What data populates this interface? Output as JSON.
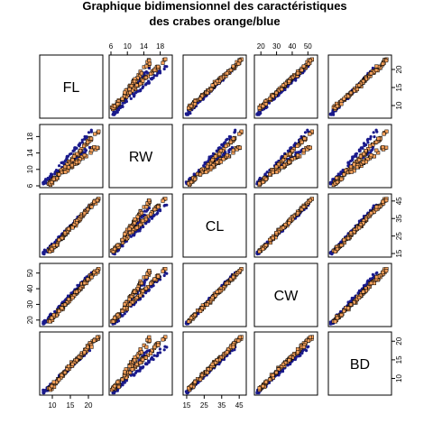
{
  "title_line1": "Graphique bidimensionnel des caractéristiques",
  "title_line2": "des crabes orange/blue",
  "colors": {
    "blue_fill": "#1a1a8c",
    "orange_fill": "#f5a05a",
    "square_edge": "#000000",
    "frame": "#000000",
    "background": "#ffffff"
  },
  "chart_data": {
    "type": "scatter-matrix",
    "variables": [
      "FL",
      "RW",
      "CL",
      "CW",
      "BD"
    ],
    "ranges": {
      "FL": [
        7,
        23.5
      ],
      "RW": [
        6,
        20.5
      ],
      "CL": [
        14,
        48
      ],
      "CW": [
        17,
        55
      ],
      "BD": [
        6,
        22
      ]
    },
    "ticks": {
      "FL": [
        10,
        15,
        20
      ],
      "RW": [
        6,
        10,
        14,
        18
      ],
      "CL": [
        15,
        25,
        35,
        45
      ],
      "CW": [
        20,
        30,
        40,
        50
      ],
      "BD": [
        10,
        15,
        20
      ]
    },
    "tick_positions": {
      "top": [
        "RW",
        "CW"
      ],
      "bottom": [
        "FL",
        "CL"
      ],
      "left": [
        "RW",
        "CW"
      ],
      "right": [
        "FL",
        "CL",
        "BD"
      ]
    },
    "series": [
      {
        "name": "blue",
        "marker": "circle"
      },
      {
        "name": "orange",
        "marker": "square"
      }
    ],
    "note": "pairwise scatter of crab morphology measurements (FL, RW, CL, CW, BD) coloured by species"
  }
}
